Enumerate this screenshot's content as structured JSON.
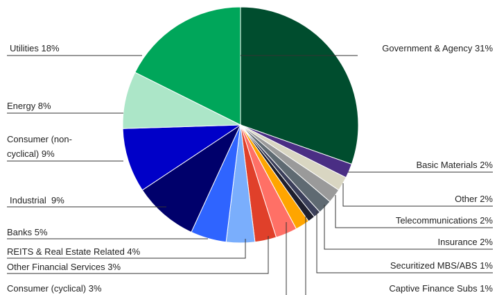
{
  "chart_data": {
    "type": "pie",
    "title": "",
    "slices": [
      {
        "label": "Government & Agency 31%",
        "value": 31,
        "color": "#004d2e"
      },
      {
        "label": "Basic Materials 2%",
        "value": 2,
        "color": "#4a2e84"
      },
      {
        "label": "Other 2%",
        "value": 2,
        "color": "#d9d6c2"
      },
      {
        "label": "Telecommunications 2%",
        "value": 2,
        "color": "#9a9a9a"
      },
      {
        "label": "Insurance 2%",
        "value": 2,
        "color": "#5f6a72"
      },
      {
        "label": "Securitized MBS/ABS 1%",
        "value": 1,
        "color": "#3b3f5a"
      },
      {
        "label": "Captive Finance Subs 1%",
        "value": 1,
        "color": "#1f1f2e"
      },
      {
        "label": "",
        "value": 2,
        "color": "#ffa500"
      },
      {
        "label": "Consumer (cyclical) 3%",
        "value": 3,
        "color": "#ff7066"
      },
      {
        "label": "Other Financial Services 3%",
        "value": 3,
        "color": "#e0402a"
      },
      {
        "label": "REITS & Real Estate Related 4%",
        "value": 4,
        "color": "#7aaefc"
      },
      {
        "label": "Banks 5%",
        "value": 5,
        "color": "#2f64ff"
      },
      {
        "label": "Industrial  9%",
        "value": 9,
        "color": "#00006b"
      },
      {
        "label": "Consumer (non-cyclical) 9%",
        "label_lines": [
          "Consumer (non-",
          "cyclical) 9%"
        ],
        "value": 9,
        "color": "#0000c8"
      },
      {
        "label": "Energy 8%",
        "value": 8,
        "color": "#ace6c8"
      },
      {
        "label": "Utilities 18%",
        "value": 18,
        "color": "#00a65a"
      }
    ]
  }
}
